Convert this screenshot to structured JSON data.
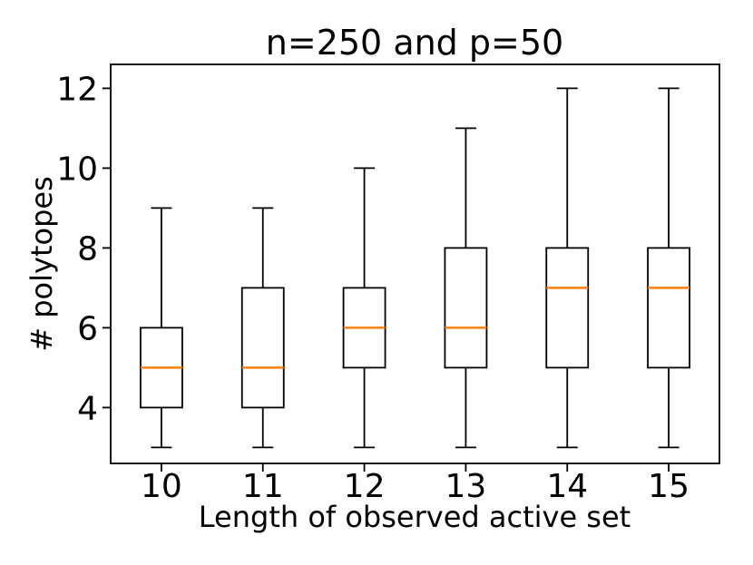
{
  "figure": {
    "title": "n=250 and p=50"
  },
  "chart_data": {
    "type": "boxplot",
    "title": "n=250 and p=50",
    "xlabel": "Length of observed active set",
    "ylabel": "# polytopes",
    "categories": [
      "10",
      "11",
      "12",
      "13",
      "14",
      "15"
    ],
    "yticks": [
      4,
      6,
      8,
      10,
      12
    ],
    "ylim": [
      2.6,
      12.6
    ],
    "grid": false,
    "legend": null,
    "boxes": [
      {
        "category": "10",
        "whisker_low": 3,
        "q1": 4,
        "median": 5,
        "q3": 6,
        "whisker_high": 9
      },
      {
        "category": "11",
        "whisker_low": 3,
        "q1": 4,
        "median": 5,
        "q3": 7,
        "whisker_high": 9
      },
      {
        "category": "12",
        "whisker_low": 3,
        "q1": 5,
        "median": 6,
        "q3": 7,
        "whisker_high": 10
      },
      {
        "category": "13",
        "whisker_low": 3,
        "q1": 5,
        "median": 6,
        "q3": 8,
        "whisker_high": 11
      },
      {
        "category": "14",
        "whisker_low": 3,
        "q1": 5,
        "median": 7,
        "q3": 8,
        "whisker_high": 12
      },
      {
        "category": "15",
        "whisker_low": 3,
        "q1": 5,
        "median": 7,
        "q3": 8,
        "whisker_high": 12
      }
    ],
    "colors": {
      "box_line": "#000000",
      "median": "#ff7f0e",
      "background": "#ffffff"
    }
  }
}
